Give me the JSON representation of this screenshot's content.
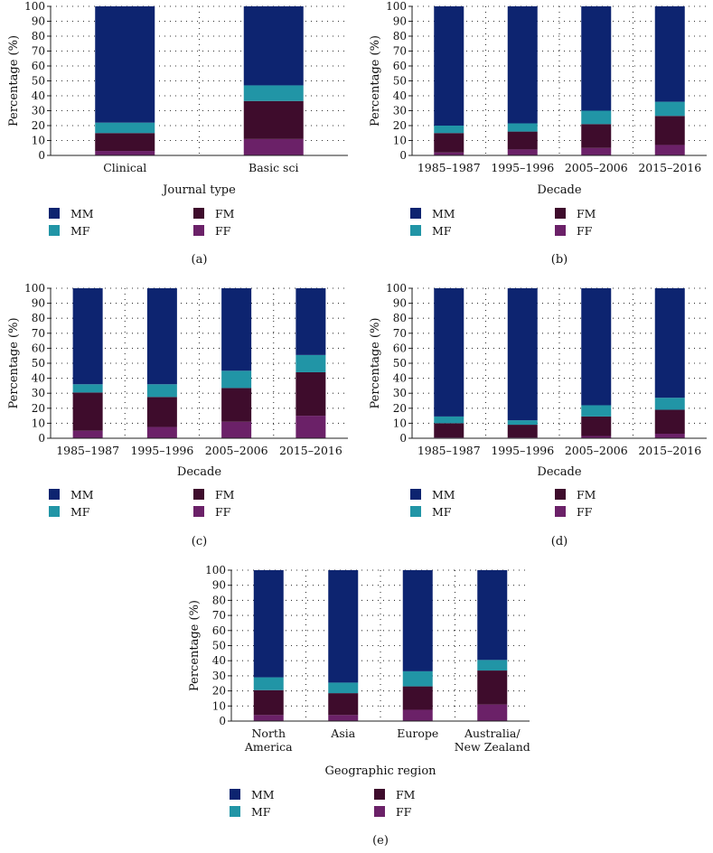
{
  "colors": {
    "MM": "#0d2470",
    "MF": "#2195a6",
    "FM": "#3e0c2c",
    "FF": "#6b2168"
  },
  "legend": [
    {
      "key": "MM",
      "label": "MM"
    },
    {
      "key": "MF",
      "label": "MF"
    },
    {
      "key": "FM",
      "label": "FM"
    },
    {
      "key": "FF",
      "label": "FF"
    }
  ],
  "chart_data": [
    {
      "type": "bar",
      "stacked": true,
      "panel_label": "(a)",
      "xlabel": "Journal type",
      "ylabel": "Percentage (%)",
      "ylim": [
        0,
        100
      ],
      "yticks": [
        0,
        10,
        20,
        30,
        40,
        50,
        60,
        70,
        80,
        90,
        100
      ],
      "categories": [
        [
          "Clinical"
        ],
        [
          "Basic sci"
        ]
      ],
      "series": [
        {
          "name": "FF",
          "values": [
            3,
            11
          ]
        },
        {
          "name": "FM",
          "values": [
            12,
            25.5
          ]
        },
        {
          "name": "MF",
          "values": [
            7,
            10.5
          ]
        },
        {
          "name": "MM",
          "values": [
            78,
            53
          ]
        }
      ]
    },
    {
      "type": "bar",
      "stacked": true,
      "panel_label": "(b)",
      "xlabel": "Decade",
      "ylabel": "Percentage (%)",
      "ylim": [
        0,
        100
      ],
      "yticks": [
        0,
        10,
        20,
        30,
        40,
        50,
        60,
        70,
        80,
        90,
        100
      ],
      "categories": [
        [
          "1985–1987"
        ],
        [
          "1995–1996"
        ],
        [
          "2005–2006"
        ],
        [
          "2015–2016"
        ]
      ],
      "series": [
        {
          "name": "FF",
          "values": [
            2,
            4,
            5,
            7
          ]
        },
        {
          "name": "FM",
          "values": [
            13,
            12,
            16,
            19.5
          ]
        },
        {
          "name": "MF",
          "values": [
            5,
            5.5,
            9,
            9.5
          ]
        },
        {
          "name": "MM",
          "values": [
            80,
            78.5,
            70,
            64
          ]
        }
      ]
    },
    {
      "type": "bar",
      "stacked": true,
      "panel_label": "(c)",
      "xlabel": "Decade",
      "ylabel": "Percentage (%)",
      "ylim": [
        0,
        100
      ],
      "yticks": [
        0,
        10,
        20,
        30,
        40,
        50,
        60,
        70,
        80,
        90,
        100
      ],
      "categories": [
        [
          "1985–1987"
        ],
        [
          "1995–1996"
        ],
        [
          "2005–2006"
        ],
        [
          "2015–2016"
        ]
      ],
      "series": [
        {
          "name": "FF",
          "values": [
            5,
            7.5,
            11,
            15
          ]
        },
        {
          "name": "FM",
          "values": [
            25.5,
            20,
            22.5,
            29
          ]
        },
        {
          "name": "MF",
          "values": [
            5.5,
            8.5,
            11.5,
            11.5
          ]
        },
        {
          "name": "MM",
          "values": [
            64,
            64,
            55,
            44.5
          ]
        }
      ]
    },
    {
      "type": "bar",
      "stacked": true,
      "panel_label": "(d)",
      "xlabel": "Decade",
      "ylabel": "Percentage (%)",
      "ylim": [
        0,
        100
      ],
      "yticks": [
        0,
        10,
        20,
        30,
        40,
        50,
        60,
        70,
        80,
        90,
        100
      ],
      "categories": [
        [
          "1985–1987"
        ],
        [
          "1995–1996"
        ],
        [
          "2005–2006"
        ],
        [
          "2015–2016"
        ]
      ],
      "series": [
        {
          "name": "FF",
          "values": [
            0.5,
            0.5,
            1.5,
            3
          ]
        },
        {
          "name": "FM",
          "values": [
            9.5,
            8.5,
            13,
            16
          ]
        },
        {
          "name": "MF",
          "values": [
            4.5,
            3,
            7.5,
            8
          ]
        },
        {
          "name": "MM",
          "values": [
            85.5,
            88,
            78,
            73
          ]
        }
      ]
    },
    {
      "type": "bar",
      "stacked": true,
      "panel_label": "(e)",
      "xlabel": "Geographic region",
      "ylabel": "Percentage (%)",
      "ylim": [
        0,
        100
      ],
      "yticks": [
        0,
        10,
        20,
        30,
        40,
        50,
        60,
        70,
        80,
        90,
        100
      ],
      "categories": [
        [
          "North",
          "America"
        ],
        [
          "Asia"
        ],
        [
          "Europe"
        ],
        [
          "Australia/",
          "New Zealand"
        ]
      ],
      "series": [
        {
          "name": "FF",
          "values": [
            4,
            4,
            7.5,
            11
          ]
        },
        {
          "name": "FM",
          "values": [
            16.5,
            14.5,
            15.5,
            22.5
          ]
        },
        {
          "name": "MF",
          "values": [
            8.5,
            7,
            10,
            7
          ]
        },
        {
          "name": "MM",
          "values": [
            71,
            74.5,
            67,
            59.5
          ]
        }
      ]
    }
  ]
}
